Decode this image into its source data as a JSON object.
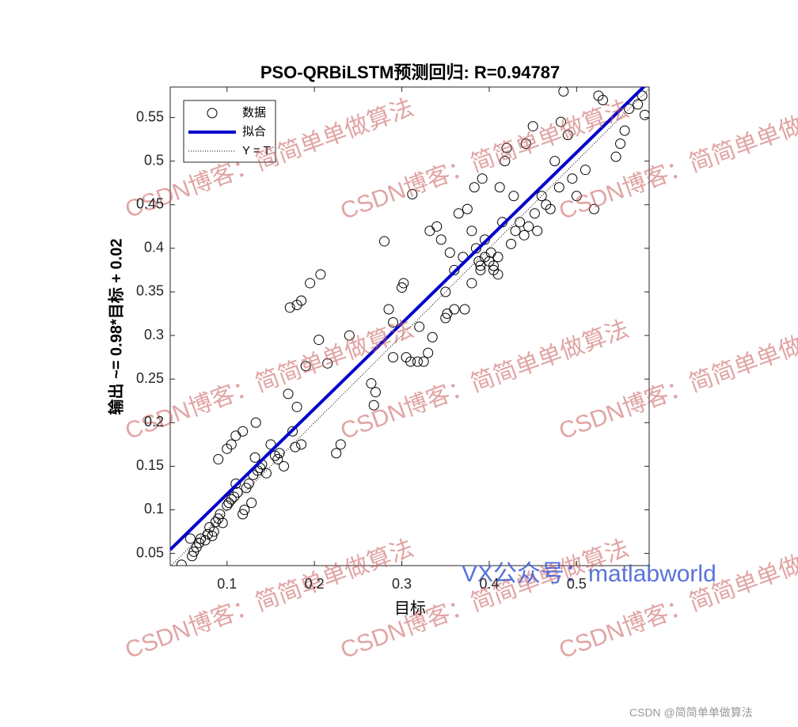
{
  "chart_data": {
    "type": "scatter",
    "title": "PSO-QRBiLSTM预测回归: R=0.94787",
    "x_label": "目标",
    "y_label": "输出 ~= 0.98*目标 + 0.02",
    "xlim": [
      0.035,
      0.583
    ],
    "ylim": [
      0.036,
      0.585
    ],
    "xticks": [
      0.1,
      0.2,
      0.3,
      0.4,
      0.5
    ],
    "yticks": [
      0.05,
      0.1,
      0.15,
      0.2,
      0.25,
      0.3,
      0.35,
      0.4,
      0.45,
      0.5,
      0.55
    ],
    "legend": "top-left",
    "series": [
      {
        "name": "数据",
        "color": "#000000",
        "mode": "markers",
        "x": [
          0.048,
          0.06,
          0.062,
          0.065,
          0.068,
          0.07,
          0.058,
          0.075,
          0.078,
          0.08,
          0.083,
          0.085,
          0.087,
          0.09,
          0.092,
          0.095,
          0.1,
          0.102,
          0.105,
          0.108,
          0.11,
          0.112,
          0.118,
          0.12,
          0.122,
          0.125,
          0.128,
          0.13,
          0.132,
          0.135,
          0.138,
          0.14,
          0.145,
          0.15,
          0.155,
          0.158,
          0.16,
          0.165,
          0.17,
          0.175,
          0.178,
          0.18,
          0.185,
          0.09,
          0.1,
          0.105,
          0.11,
          0.118,
          0.133,
          0.172,
          0.18,
          0.185,
          0.19,
          0.195,
          0.207,
          0.205,
          0.215,
          0.225,
          0.23,
          0.24,
          0.265,
          0.268,
          0.27,
          0.28,
          0.285,
          0.29,
          0.29,
          0.3,
          0.302,
          0.305,
          0.31,
          0.312,
          0.318,
          0.32,
          0.325,
          0.33,
          0.332,
          0.335,
          0.34,
          0.345,
          0.35,
          0.352,
          0.355,
          0.36,
          0.365,
          0.37,
          0.372,
          0.375,
          0.38,
          0.383,
          0.385,
          0.388,
          0.39,
          0.392,
          0.395,
          0.4,
          0.402,
          0.405,
          0.41,
          0.412,
          0.415,
          0.418,
          0.42,
          0.425,
          0.428,
          0.43,
          0.435,
          0.44,
          0.442,
          0.445,
          0.45,
          0.452,
          0.455,
          0.46,
          0.465,
          0.47,
          0.475,
          0.48,
          0.482,
          0.485,
          0.49,
          0.495,
          0.5,
          0.51,
          0.52,
          0.525,
          0.53,
          0.545,
          0.55,
          0.555,
          0.56,
          0.57,
          0.575,
          0.578,
          0.35,
          0.36,
          0.395,
          0.405,
          0.41,
          0.38,
          0.39
        ],
        "values": [
          0.037,
          0.047,
          0.052,
          0.057,
          0.062,
          0.067,
          0.067,
          0.065,
          0.072,
          0.08,
          0.07,
          0.075,
          0.086,
          0.09,
          0.095,
          0.085,
          0.105,
          0.108,
          0.112,
          0.115,
          0.13,
          0.12,
          0.095,
          0.1,
          0.125,
          0.13,
          0.108,
          0.14,
          0.16,
          0.145,
          0.148,
          0.152,
          0.142,
          0.175,
          0.162,
          0.158,
          0.165,
          0.15,
          0.233,
          0.19,
          0.172,
          0.218,
          0.175,
          0.158,
          0.17,
          0.175,
          0.185,
          0.19,
          0.2,
          0.332,
          0.335,
          0.34,
          0.265,
          0.36,
          0.37,
          0.295,
          0.268,
          0.165,
          0.175,
          0.3,
          0.245,
          0.22,
          0.235,
          0.408,
          0.33,
          0.315,
          0.275,
          0.355,
          0.36,
          0.275,
          0.27,
          0.462,
          0.27,
          0.31,
          0.27,
          0.28,
          0.42,
          0.298,
          0.425,
          0.41,
          0.35,
          0.325,
          0.395,
          0.375,
          0.44,
          0.39,
          0.33,
          0.445,
          0.42,
          0.47,
          0.4,
          0.385,
          0.375,
          0.48,
          0.39,
          0.385,
          0.395,
          0.38,
          0.39,
          0.47,
          0.43,
          0.5,
          0.515,
          0.405,
          0.46,
          0.42,
          0.43,
          0.415,
          0.52,
          0.425,
          0.54,
          0.44,
          0.42,
          0.46,
          0.45,
          0.445,
          0.5,
          0.47,
          0.545,
          0.58,
          0.53,
          0.48,
          0.46,
          0.49,
          0.445,
          0.575,
          0.57,
          0.505,
          0.52,
          0.535,
          0.56,
          0.565,
          0.575,
          0.553,
          0.32,
          0.33,
          0.41,
          0.375,
          0.37,
          0.36,
          0.38
        ]
      },
      {
        "name": "拟合",
        "color": "#0000cc",
        "mode": "line",
        "dash": "solid",
        "x": [
          0.035,
          0.583
        ],
        "values": [
          0.0543,
          0.5913
        ]
      },
      {
        "name": "Y = T",
        "color": "#000000",
        "mode": "line",
        "dash": "dotted",
        "x": [
          0.035,
          0.583
        ],
        "values": [
          0.035,
          0.583
        ]
      }
    ],
    "watermark": "CSDN博客：简简单单做算法",
    "watermark_2": "VX公众号：matlabworld",
    "footer": "CSDN @简简单单做算法"
  }
}
